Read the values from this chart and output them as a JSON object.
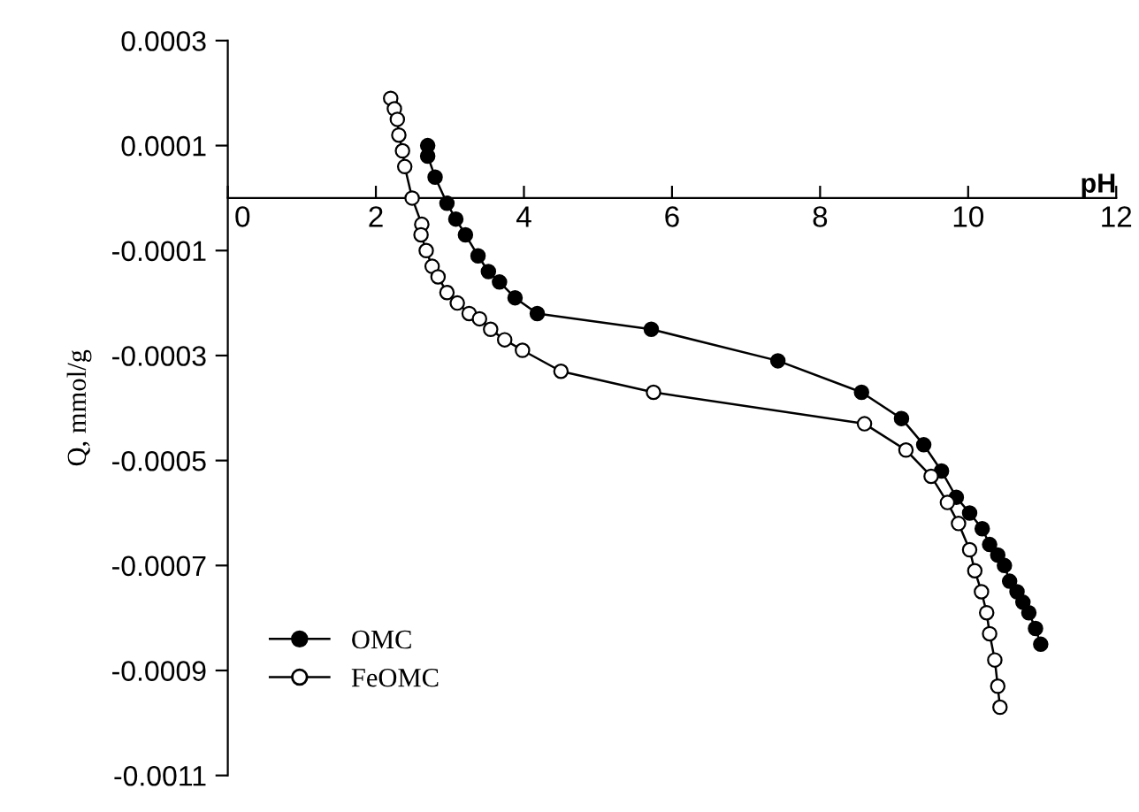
{
  "chart_data": {
    "type": "line",
    "xlabel": "pH",
    "ylabel": "Q, mmol/g",
    "xlim": [
      0,
      12
    ],
    "xticks": [
      0,
      2,
      4,
      6,
      8,
      10,
      12
    ],
    "ylim": [
      -0.0011,
      0.0003
    ],
    "yticks": [
      0.0003,
      0.0001,
      {
        "value": -0.0001,
        "label": "-0.0001"
      },
      {
        "value": -0.0003,
        "label": "-0.0003"
      },
      {
        "value": -0.0005,
        "label": "-0.0005"
      },
      {
        "value": -0.0007,
        "label": "-0.0007"
      },
      {
        "value": -0.0009,
        "label": "-0.0009"
      },
      {
        "value": -0.0011,
        "label": "-0.0011"
      }
    ],
    "grid": false,
    "legend": "bottom left",
    "marker": "circle",
    "line_style": "solid",
    "series": [
      {
        "name": "OMC",
        "color": "#000000",
        "x": [
          2.7,
          2.7,
          2.8,
          2.96,
          3.08,
          3.21,
          3.38,
          3.52,
          3.67,
          3.88,
          4.18,
          5.72,
          7.43,
          8.56,
          9.1,
          9.4,
          9.64,
          9.84,
          10.02,
          10.19,
          10.29,
          10.4,
          10.49,
          10.56,
          10.66,
          10.74,
          10.82,
          10.91,
          10.98
        ],
        "values": [
          0.0001,
          8e-05,
          4e-05,
          -1e-05,
          -4e-05,
          -7e-05,
          -0.00011,
          -0.00014,
          -0.00016,
          -0.00019,
          -0.00022,
          -0.00025,
          -0.00031,
          -0.00037,
          -0.00042,
          -0.00047,
          -0.00052,
          -0.00057,
          -0.0006,
          -0.00063,
          -0.00066,
          -0.00068,
          -0.0007,
          -0.00073,
          -0.00075,
          -0.00077,
          -0.00079,
          -0.00082,
          -0.00085
        ]
      },
      {
        "name": "FeOMC",
        "color": "#000000",
        "x": [
          2.2,
          2.25,
          2.29,
          2.31,
          2.36,
          2.39,
          2.49,
          2.62,
          2.61,
          2.68,
          2.76,
          2.84,
          2.96,
          3.1,
          3.26,
          3.4,
          3.55,
          3.74,
          3.98,
          4.5,
          5.75,
          8.6,
          9.16,
          9.5,
          9.72,
          9.87,
          10.02,
          10.09,
          10.18,
          10.25,
          10.29,
          10.36,
          10.4,
          10.43
        ],
        "values": [
          0.00019,
          0.00017,
          0.00015,
          0.00012,
          9e-05,
          6e-05,
          0.0,
          -5e-05,
          -7e-05,
          -0.0001,
          -0.00013,
          -0.00015,
          -0.00018,
          -0.0002,
          -0.00022,
          -0.00023,
          -0.00025,
          -0.00027,
          -0.00029,
          -0.00033,
          -0.00037,
          -0.00043,
          -0.00048,
          -0.00053,
          -0.00058,
          -0.00062,
          -0.00067,
          -0.00071,
          -0.00075,
          -0.00079,
          -0.00083,
          -0.00088,
          -0.00093,
          -0.00097
        ]
      }
    ]
  }
}
